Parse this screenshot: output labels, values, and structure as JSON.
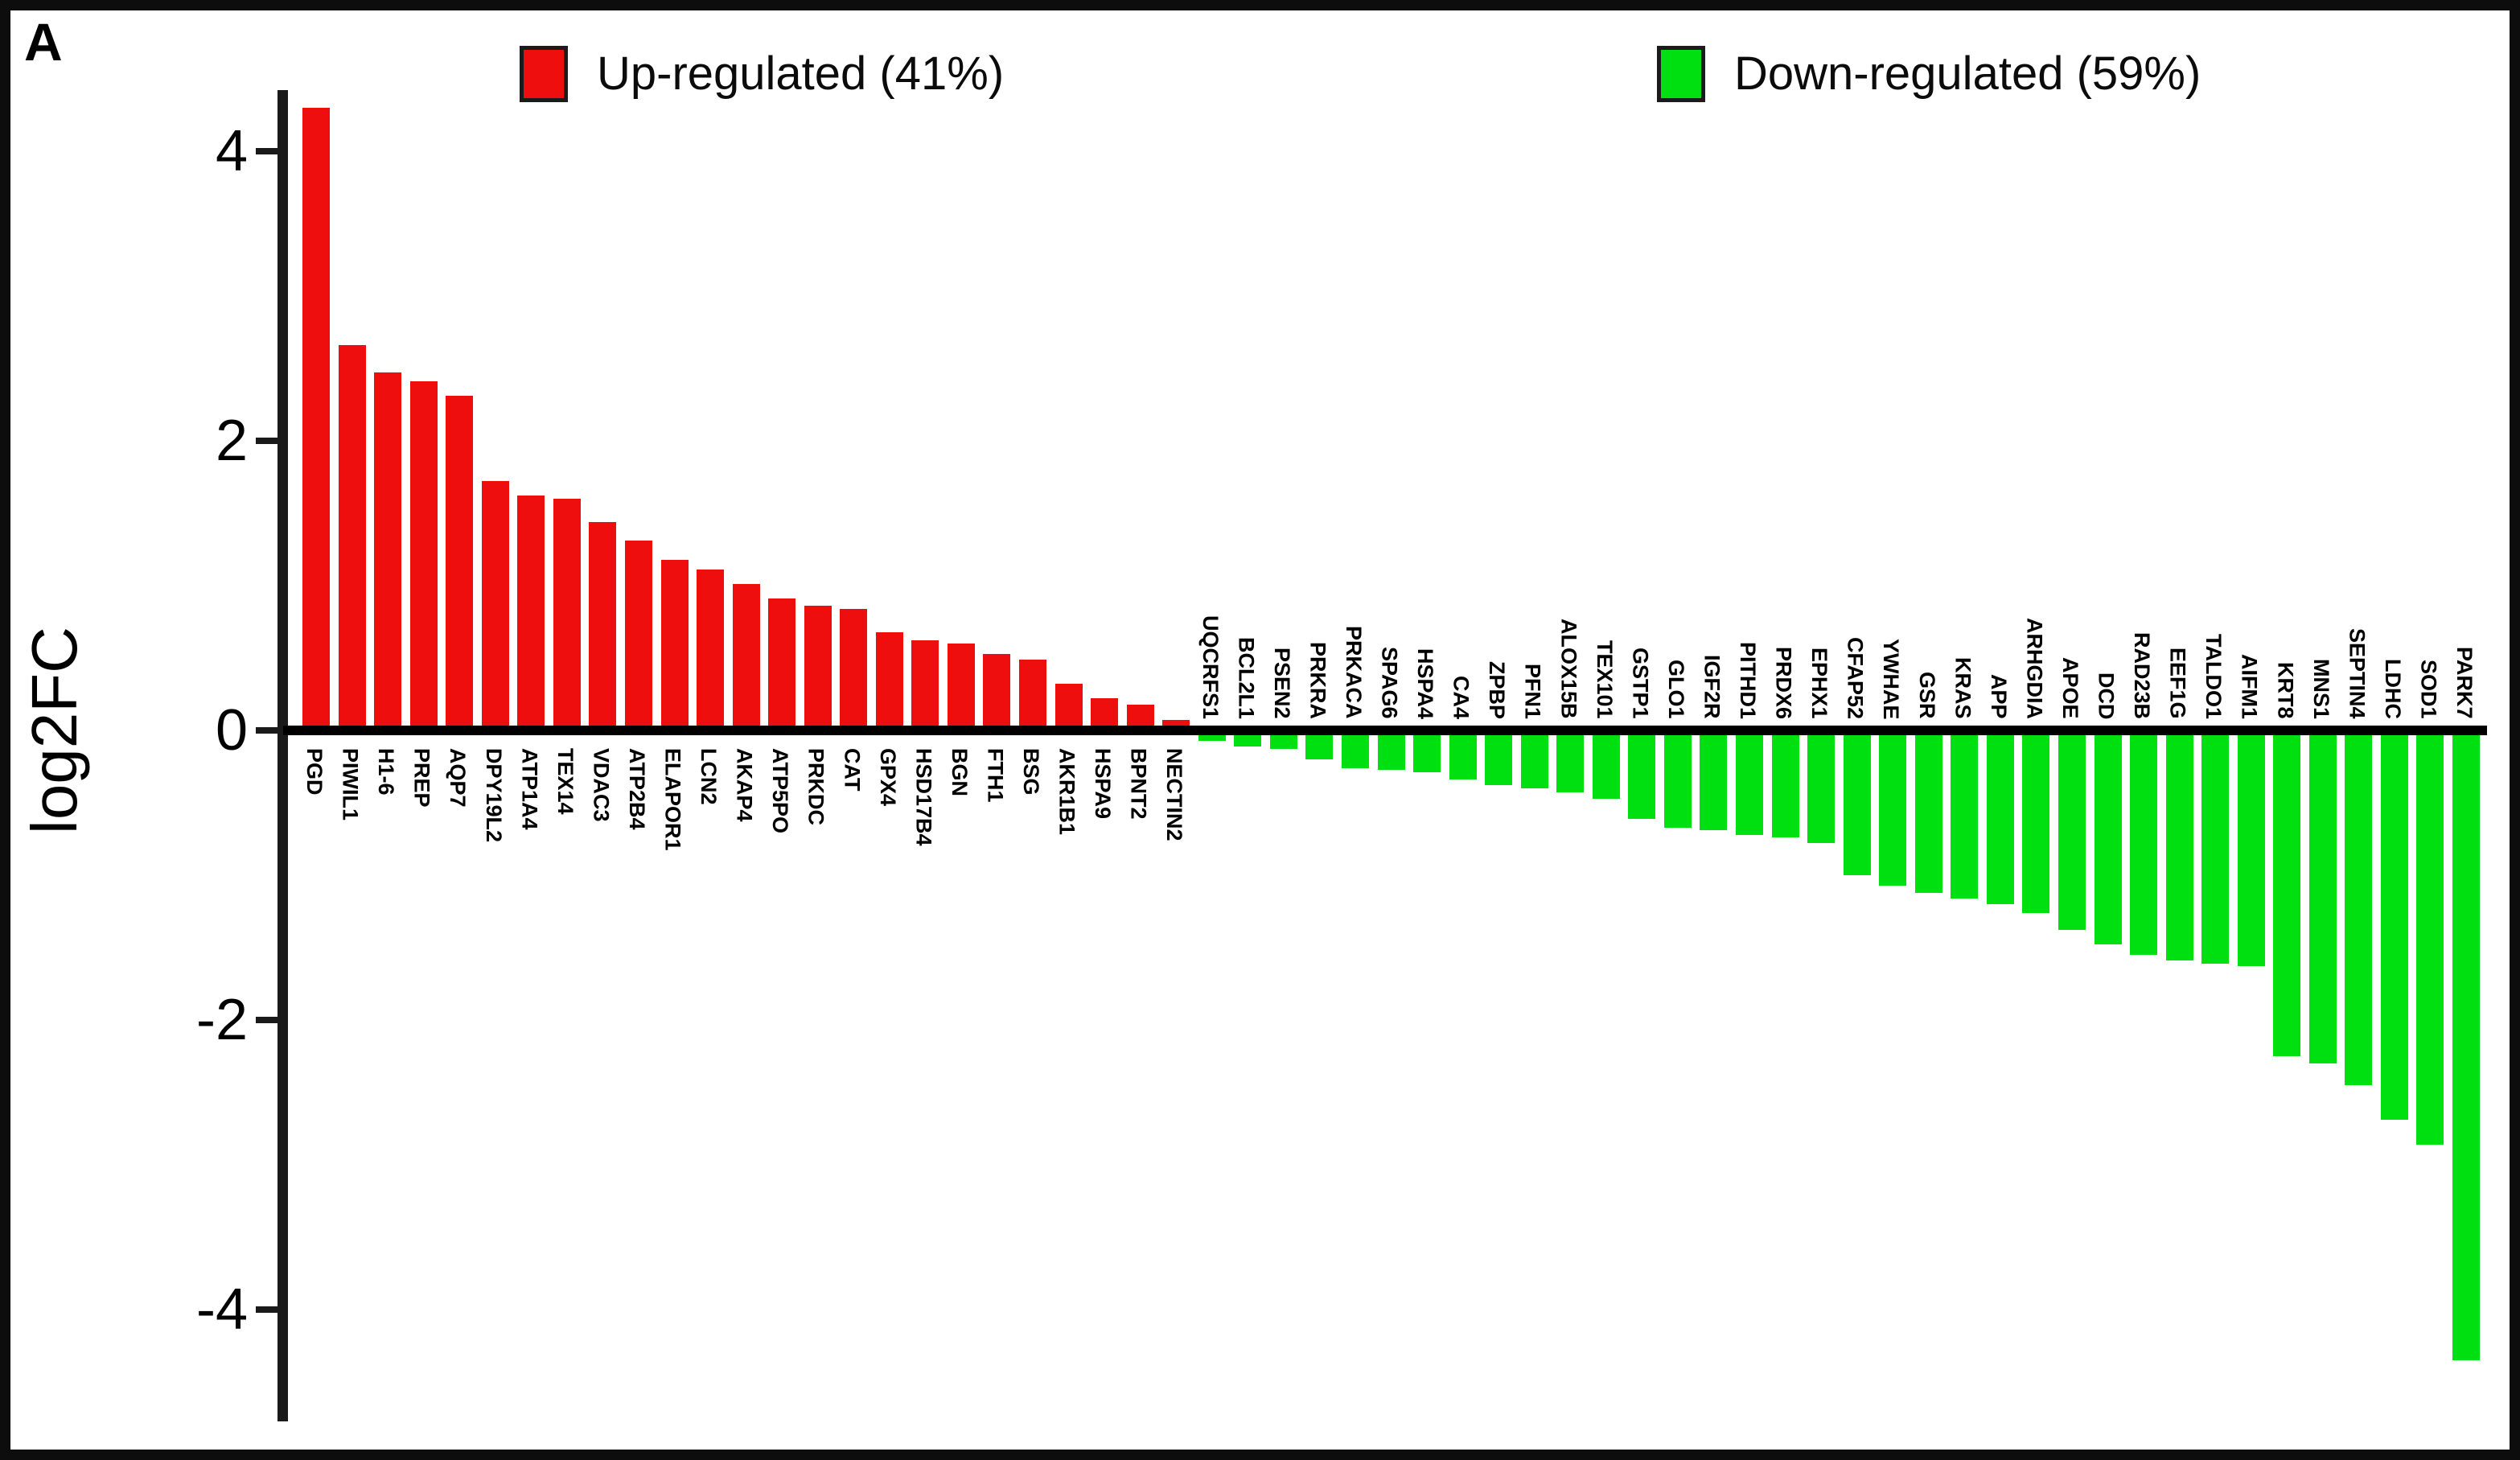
{
  "panel_label": "A",
  "y_axis": {
    "label": "log2FC",
    "ticks": [
      {
        "label": "4",
        "value": 4
      },
      {
        "label": "2",
        "value": 2
      },
      {
        "label": "0",
        "value": 0
      },
      {
        "label": "-2",
        "value": -2
      },
      {
        "label": "-4",
        "value": -4
      }
    ]
  },
  "legend": {
    "up": {
      "label": "Up-regulated (41%)",
      "color": "#ee0e0e"
    },
    "down": {
      "label": "Down-regulated (59%)",
      "color": "#00e010"
    }
  },
  "colors": {
    "up_bar": "#ee0e0e",
    "down_bar": "#00e010",
    "axis": "#1a1a1a",
    "background": "#ffffff"
  },
  "chart_data": {
    "type": "bar",
    "title": "",
    "xlabel": "",
    "ylabel": "log2FC",
    "ylim": [
      -4.6,
      4.6
    ],
    "grid": false,
    "legend_position": "top",
    "series": [
      {
        "name": "Up-regulated (41%)",
        "color": "#ee0e0e",
        "points": [
          {
            "gene": "PGD",
            "log2fc": 4.3
          },
          {
            "gene": "PIWIL1",
            "log2fc": 2.66
          },
          {
            "gene": "H1-6",
            "log2fc": 2.47
          },
          {
            "gene": "PREP",
            "log2fc": 2.41
          },
          {
            "gene": "AQP7",
            "log2fc": 2.31
          },
          {
            "gene": "DPY19L2",
            "log2fc": 1.72
          },
          {
            "gene": "ATP1A4",
            "log2fc": 1.62
          },
          {
            "gene": "TEX14",
            "log2fc": 1.6
          },
          {
            "gene": "VDAC3",
            "log2fc": 1.44
          },
          {
            "gene": "ATP2B4",
            "log2fc": 1.31
          },
          {
            "gene": "ELAPOR1",
            "log2fc": 1.18
          },
          {
            "gene": "LCN2",
            "log2fc": 1.11
          },
          {
            "gene": "AKAP4",
            "log2fc": 1.01
          },
          {
            "gene": "ATP5PO",
            "log2fc": 0.91
          },
          {
            "gene": "PRKDC",
            "log2fc": 0.86
          },
          {
            "gene": "CAT",
            "log2fc": 0.84
          },
          {
            "gene": "GPX4",
            "log2fc": 0.68
          },
          {
            "gene": "HSD17B4",
            "log2fc": 0.62
          },
          {
            "gene": "BGN",
            "log2fc": 0.6
          },
          {
            "gene": "FTH1",
            "log2fc": 0.53
          },
          {
            "gene": "BSG",
            "log2fc": 0.49
          },
          {
            "gene": "AKR1B1",
            "log2fc": 0.32
          },
          {
            "gene": "HSPA9",
            "log2fc": 0.22
          },
          {
            "gene": "BPNT2",
            "log2fc": 0.18
          },
          {
            "gene": "NECTIN2",
            "log2fc": 0.07
          }
        ]
      },
      {
        "name": "Down-regulated (59%)",
        "color": "#00e010",
        "points": [
          {
            "gene": "UQCRFS1",
            "log2fc": -0.07
          },
          {
            "gene": "BCL2L1",
            "log2fc": -0.11
          },
          {
            "gene": "PSEN2",
            "log2fc": -0.13
          },
          {
            "gene": "PRKRA",
            "log2fc": -0.2
          },
          {
            "gene": "PRKACA",
            "log2fc": -0.26
          },
          {
            "gene": "SPAG6",
            "log2fc": -0.27
          },
          {
            "gene": "HSPA4",
            "log2fc": -0.29
          },
          {
            "gene": "CA4",
            "log2fc": -0.34
          },
          {
            "gene": "ZPBP",
            "log2fc": -0.38
          },
          {
            "gene": "PFN1",
            "log2fc": -0.4
          },
          {
            "gene": "ALOX15B",
            "log2fc": -0.43
          },
          {
            "gene": "TEX101",
            "log2fc": -0.47
          },
          {
            "gene": "GSTP1",
            "log2fc": -0.61
          },
          {
            "gene": "GLO1",
            "log2fc": -0.67
          },
          {
            "gene": "IGF2R",
            "log2fc": -0.69
          },
          {
            "gene": "PITHD1",
            "log2fc": -0.72
          },
          {
            "gene": "PRDX6",
            "log2fc": -0.74
          },
          {
            "gene": "EPHX1",
            "log2fc": -0.78
          },
          {
            "gene": "CFAP52",
            "log2fc": -1.0
          },
          {
            "gene": "YWHAE",
            "log2fc": -1.07
          },
          {
            "gene": "GSR",
            "log2fc": -1.12
          },
          {
            "gene": "KRAS",
            "log2fc": -1.16
          },
          {
            "gene": "APP",
            "log2fc": -1.2
          },
          {
            "gene": "ARHGDIA",
            "log2fc": -1.26
          },
          {
            "gene": "APOE",
            "log2fc": -1.38
          },
          {
            "gene": "DCD",
            "log2fc": -1.48
          },
          {
            "gene": "RAD23B",
            "log2fc": -1.55
          },
          {
            "gene": "EEF1G",
            "log2fc": -1.59
          },
          {
            "gene": "TALDO1",
            "log2fc": -1.61
          },
          {
            "gene": "AIFM1",
            "log2fc": -1.63
          },
          {
            "gene": "KRT8",
            "log2fc": -2.25
          },
          {
            "gene": "MNS1",
            "log2fc": -2.3
          },
          {
            "gene": "SEPTIN4",
            "log2fc": -2.45
          },
          {
            "gene": "LDHC",
            "log2fc": -2.69
          },
          {
            "gene": "SOD1",
            "log2fc": -2.86
          },
          {
            "gene": "PARK7",
            "log2fc": -4.35
          }
        ]
      }
    ]
  }
}
